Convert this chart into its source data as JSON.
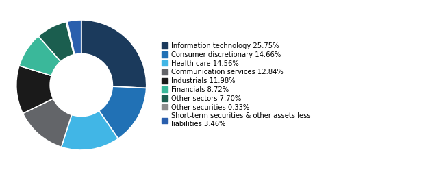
{
  "labels": [
    "Information technology 25.75%",
    "Consumer discretionary 14.66%",
    "Health care 14.56%",
    "Communication services 12.84%",
    "Industrials 11.98%",
    "Financials 8.72%",
    "Other sectors 7.70%",
    "Other securities 0.33%",
    "Short-term securities & other assets less\nliabilities 3.46%"
  ],
  "values": [
    25.75,
    14.66,
    14.56,
    12.84,
    11.98,
    8.72,
    7.7,
    0.33,
    3.46
  ],
  "colors": [
    "#1b3a5c",
    "#2171b5",
    "#41b6e6",
    "#636569",
    "#1a1a1a",
    "#3ab89a",
    "#1b5e4f",
    "#8c8c8c",
    "#2a5fad"
  ],
  "background": "#ffffff",
  "wedge_edge_color": "#ffffff",
  "wedge_linewidth": 1.2,
  "startangle": 90,
  "donut_width": 0.52
}
